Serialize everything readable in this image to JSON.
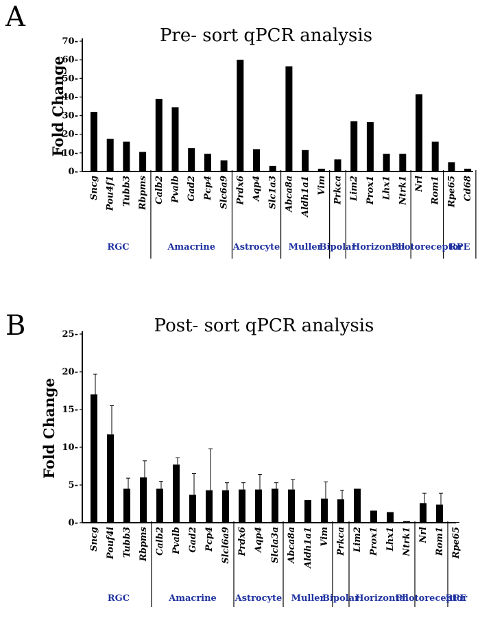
{
  "colors": {
    "bar": "#000000",
    "group_label": "#2033a0",
    "axis": "#000000"
  },
  "chart_data": [
    {
      "panel_letter": "A",
      "type": "bar",
      "title": "Pre- sort qPCR analysis",
      "ylabel": "Fold Change",
      "xlabel": "",
      "ylim": [
        0,
        70
      ],
      "yticks": [
        0,
        10,
        20,
        30,
        40,
        50,
        60,
        70
      ],
      "categories": [
        "Sncg",
        "Pou4f1",
        "Tubb3",
        "Rbpms",
        "Calb2",
        "Pvalb",
        "Gad2",
        "Pcp4",
        "Slc6a9",
        "Prdx6",
        "Aqp4",
        "Slc1a3",
        "Abca8a",
        "Aldh1a1",
        "Vim",
        "Prkca",
        "Lim2",
        "Prox1",
        "Lhx1",
        "Ntrk1",
        "Nrl",
        "Rom1",
        "Rpe65",
        "Cd68"
      ],
      "values": [
        32,
        17.5,
        16,
        10.5,
        39,
        34.5,
        12.5,
        9.5,
        6,
        60,
        12,
        3,
        56.5,
        11.5,
        1.5,
        6.5,
        27,
        26.5,
        9.5,
        9.5,
        41.5,
        16,
        5,
        1.5
      ],
      "groups": [
        {
          "name": "RGC",
          "count": 4
        },
        {
          "name": "Amacrine",
          "count": 5
        },
        {
          "name": "Astrocyte",
          "count": 3
        },
        {
          "name": "Muller",
          "count": 3
        },
        {
          "name": "Bipolar",
          "count": 1
        },
        {
          "name": "Horizontal",
          "count": 4
        },
        {
          "name": "Photoreceptor",
          "count": 2
        },
        {
          "name": "RPE",
          "count": 2
        }
      ]
    },
    {
      "panel_letter": "B",
      "type": "bar",
      "title": "Post- sort qPCR analysis",
      "ylabel": "Fold Change",
      "xlabel": "",
      "ylim": [
        0,
        25
      ],
      "yticks": [
        0,
        5,
        10,
        15,
        20,
        25
      ],
      "categories": [
        "Sncg",
        "Pouf4i",
        "Tubb3",
        "Rbpms",
        "Calb2",
        "Pvalb",
        "Gad2",
        "Pcp4",
        "Slcl6a9",
        "Prdx6",
        "Aqp4",
        "Slcla3a",
        "Abca8a",
        "Aldh1a1",
        "Vim",
        "Prkca",
        "Lim2",
        "Prox1",
        "Lhx1",
        "Ntrk1",
        "Nrl",
        "Rom1",
        "Rpe65"
      ],
      "values": [
        17,
        11.7,
        4.5,
        6,
        4.5,
        7.7,
        3.7,
        4.3,
        4.3,
        4.4,
        4.4,
        4.5,
        4.4,
        3,
        3.2,
        3.1,
        4.5,
        1.6,
        1.4,
        0.2,
        2.6,
        2.4,
        0.1
      ],
      "errors": [
        2.7,
        3.8,
        1.4,
        2.2,
        1.0,
        0.9,
        2.8,
        5.5,
        1.0,
        0.9,
        2.0,
        0.8,
        1.3,
        0,
        2.2,
        1.2,
        0,
        0,
        0,
        0,
        1.3,
        1.5,
        0
      ],
      "groups": [
        {
          "name": "RGC",
          "count": 4
        },
        {
          "name": "Amacrine",
          "count": 5
        },
        {
          "name": "Astrocyte",
          "count": 3
        },
        {
          "name": "Muller",
          "count": 3
        },
        {
          "name": "Bipolar",
          "count": 1
        },
        {
          "name": "Horizontal",
          "count": 4
        },
        {
          "name": "Photoreceptor",
          "count": 2
        },
        {
          "name": "RPE",
          "count": 1
        }
      ]
    }
  ]
}
